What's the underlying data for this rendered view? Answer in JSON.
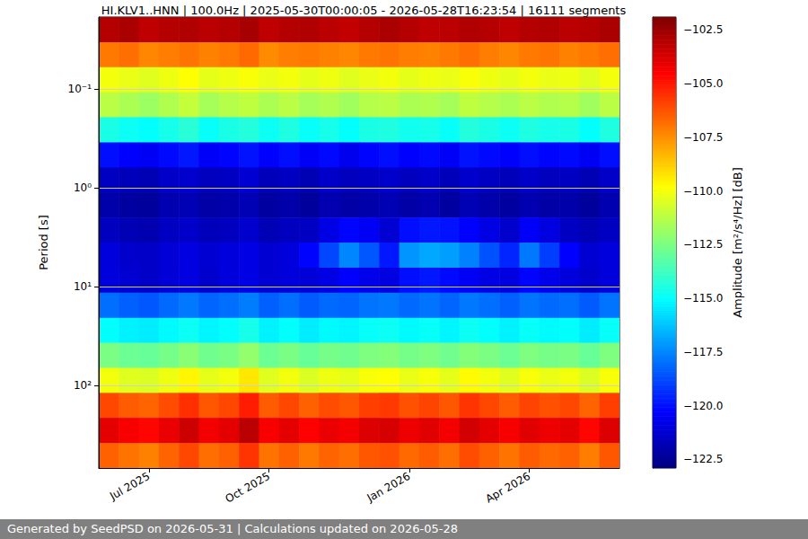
{
  "chart_data": {
    "type": "heatmap",
    "title": "HI.KLV1..HNN | 100.0Hz | 2025-05-30T00:00:05 - 2026-05-28T16:23:54 | 16111 segments",
    "ylabel": "Period [s]",
    "log": "y",
    "grid": true,
    "x": [
      null,
      null,
      "Jul 2025",
      null,
      null,
      null,
      null,
      null,
      "Oct 2025",
      null,
      null,
      null,
      null,
      null,
      null,
      "Jan 2026",
      null,
      null,
      null,
      null,
      null,
      "Apr 2026",
      null,
      null,
      null,
      null
    ],
    "ylim": [
      0.0187,
      686
    ],
    "yticks": [
      {
        "value": 0.1,
        "label": "10⁻¹"
      },
      {
        "value": 1,
        "label": "10⁰"
      },
      {
        "value": 10,
        "label": "10¹"
      },
      {
        "value": 100,
        "label": "10²"
      }
    ],
    "period_edges": [
      0.0187,
      0.0336,
      0.0601,
      0.108,
      0.193,
      0.347,
      0.622,
      1.11,
      2.0,
      3.58,
      6.43,
      11.5,
      20.7,
      37,
      66.4,
      119,
      213,
      383,
      686
    ],
    "cells": [
      [
        -103,
        -102.8,
        -103.2,
        -103,
        -102.9,
        -103.1,
        -103,
        -102.7,
        -103.2,
        -103,
        -102.9,
        -103.1,
        -103.3,
        -103,
        -102.8,
        -103,
        -103.2,
        -103.1,
        -102.9,
        -103,
        -103.2,
        -103,
        -102.9,
        -103.1,
        -103,
        -102.8
      ],
      [
        -107,
        -106.8,
        -107.3,
        -107.1,
        -106.9,
        -107.2,
        -107,
        -106.7,
        -107.4,
        -107.1,
        -107,
        -107.2,
        -107.3,
        -107,
        -106.9,
        -107.1,
        -107.2,
        -107,
        -106.8,
        -107.1,
        -107.3,
        -107,
        -106.9,
        -107.2,
        -107,
        -106.8
      ],
      [
        -110,
        -110.2,
        -110.4,
        -110.1,
        -109.8,
        -110.3,
        -110.1,
        -109.9,
        -110.2,
        -110,
        -110.3,
        -110.1,
        -110.4,
        -110.2,
        -110,
        -110.3,
        -110.1,
        -110.2,
        -109.9,
        -110.1,
        -110.3,
        -110,
        -110.2,
        -110.1,
        -110.4,
        -110
      ],
      [
        -111.2,
        -111.5,
        -111.8,
        -111.4,
        -111,
        -111.6,
        -111.3,
        -111.1,
        -111.5,
        -111.2,
        -111.6,
        -111.4,
        -111.7,
        -111.3,
        -111.2,
        -111.5,
        -111.4,
        -111.6,
        -111.1,
        -111.3,
        -111.5,
        -111.2,
        -111.4,
        -111.3,
        -111.7,
        -111.2
      ],
      [
        -114.5,
        -114.8,
        -115,
        -114.6,
        -114.2,
        -114.9,
        -114.5,
        -114.3,
        -114.8,
        -114.4,
        -114.9,
        -114.6,
        -115,
        -114.5,
        -114.4,
        -114.7,
        -114.6,
        -114.9,
        -114.3,
        -114.5,
        -114.8,
        -114.4,
        -114.6,
        -114.5,
        -115,
        -114.4
      ],
      [
        -120,
        -120.3,
        -120.5,
        -120.1,
        -119.8,
        -120.4,
        -120.2,
        -119.9,
        -120.3,
        -120,
        -120.4,
        -120.1,
        -120.6,
        -120.2,
        -120,
        -120.3,
        -120.1,
        -120.4,
        -119.9,
        -120.1,
        -120.3,
        -120,
        -120.2,
        -120.1,
        -120.5,
        -120
      ],
      [
        -121.5,
        -121.7,
        -121.8,
        -121.4,
        -121.3,
        -121.6,
        -121.5,
        -121.2,
        -121.7,
        -121.5,
        -121.8,
        -121.4,
        -121.6,
        -121.5,
        -121.3,
        -121.6,
        -121.4,
        -121.7,
        -121.3,
        -121.5,
        -121.7,
        -121.4,
        -121.6,
        -121.5,
        -121.8,
        -121.4
      ],
      [
        -122,
        -122.2,
        -122.3,
        -121.9,
        -121.8,
        -122.1,
        -122,
        -121.8,
        -122.2,
        -122,
        -122.3,
        -121.9,
        -122.1,
        -122,
        -121.8,
        -122.1,
        -121.9,
        -122.2,
        -121.8,
        -122,
        -122.2,
        -121.9,
        -122.1,
        -122,
        -122.3,
        -121.9
      ],
      [
        -121.6,
        -121.8,
        -121.9,
        -121.5,
        -121.4,
        -121.7,
        -121.6,
        -121.3,
        -121.8,
        -121.6,
        -121.5,
        -120.8,
        -120.2,
        -120.5,
        -121.2,
        -120,
        -119.8,
        -119.9,
        -120.3,
        -120.8,
        -121.3,
        -120.4,
        -120.9,
        -121.5,
        -121.8,
        -121.5
      ],
      [
        -121,
        -121.3,
        -121.4,
        -121.1,
        -120.9,
        -121.2,
        -121,
        -120.8,
        -121.2,
        -121,
        -120.2,
        -118.8,
        -117.5,
        -118.5,
        -119.8,
        -117.2,
        -116.8,
        -117,
        -117.6,
        -118.6,
        -119.5,
        -117.8,
        -119,
        -120.3,
        -121.2,
        -121
      ],
      [
        -121,
        -121.2,
        -121.4,
        -121.1,
        -120.9,
        -121.3,
        -121,
        -120.8,
        -121.2,
        -121,
        -121.1,
        -120.8,
        -120.3,
        -120.7,
        -120.9,
        -120,
        -119.8,
        -120.1,
        -120.5,
        -120.8,
        -120.9,
        -120.2,
        -120.7,
        -121,
        -121.3,
        -121
      ],
      [
        -118,
        -118.3,
        -118.5,
        -118.1,
        -117.8,
        -118.2,
        -118,
        -117.7,
        -118.3,
        -118,
        -118.4,
        -118.1,
        -118.2,
        -117.9,
        -117.8,
        -118.1,
        -117.9,
        -118.2,
        -117.8,
        -118,
        -118.3,
        -117.9,
        -118.1,
        -118,
        -118.4,
        -117.9
      ],
      [
        -115,
        -115.3,
        -115.4,
        -115.1,
        -114.8,
        -115.2,
        -115,
        -114.6,
        -115.3,
        -115,
        -115.4,
        -115.1,
        -115.2,
        -114.9,
        -114.8,
        -115.1,
        -114.9,
        -115.2,
        -114.8,
        -115,
        -115.3,
        -114.9,
        -115.1,
        -115,
        -115.4,
        -114.9
      ],
      [
        -112.5,
        -112.8,
        -112.9,
        -112.6,
        -112.2,
        -112.7,
        -112.5,
        -112,
        -112.8,
        -112.5,
        -112.9,
        -112.6,
        -112.7,
        -112.4,
        -112.3,
        -112.6,
        -112.4,
        -112.7,
        -112.3,
        -112.5,
        -112.8,
        -112.4,
        -112.6,
        -112.5,
        -112.9,
        -112.4
      ],
      [
        -110,
        -110.4,
        -110.5,
        -110.1,
        -109.6,
        -110.3,
        -110,
        -109.3,
        -110.4,
        -110,
        -110.5,
        -110.1,
        -110.3,
        -109.9,
        -109.8,
        -110.2,
        -109.9,
        -110.3,
        -109.7,
        -110,
        -110.4,
        -109.9,
        -110.2,
        -110,
        -110.5,
        -109.9
      ],
      [
        -106,
        -106.4,
        -106.6,
        -106.1,
        -105.5,
        -106.3,
        -106,
        -105.1,
        -106.4,
        -106,
        -106.5,
        -106.1,
        -106.3,
        -105.8,
        -105.7,
        -106.2,
        -105.9,
        -106.3,
        -105.6,
        -106,
        -106.4,
        -105.9,
        -106.2,
        -106,
        -106.6,
        -105.8
      ],
      [
        -104,
        -104.4,
        -104.6,
        -104.1,
        -103.5,
        -104.3,
        -104,
        -103.1,
        -104.4,
        -104,
        -104.5,
        -104.1,
        -104.3,
        -103.8,
        -103.7,
        -104.2,
        -103.9,
        -104.3,
        -103.6,
        -104,
        -104.4,
        -103.9,
        -104.2,
        -104,
        -104.6,
        -103.8
      ],
      [
        -106.5,
        -106.9,
        -107.2,
        -106.6,
        -106,
        -106.8,
        -106.5,
        -105.6,
        -106.9,
        -106.5,
        -107,
        -106.6,
        -106.8,
        -106.3,
        -106.2,
        -106.7,
        -106.4,
        -106.8,
        -106.1,
        -106.5,
        -106.9,
        -106.4,
        -106.7,
        -106.5,
        -107.1,
        -106.3
      ]
    ],
    "colorbar": {
      "label": "Amplitude [m²/s⁴/Hz] [dB]",
      "range": [
        -122.9,
        -101.9
      ],
      "ticks": [
        {
          "value": -102.5,
          "label": "−102.5"
        },
        {
          "value": -105,
          "label": "−105.0"
        },
        {
          "value": -107.5,
          "label": "−107.5"
        },
        {
          "value": -110,
          "label": "−110.0"
        },
        {
          "value": -112.5,
          "label": "−112.5"
        },
        {
          "value": -115,
          "label": "−115.0"
        },
        {
          "value": -117.5,
          "label": "−117.5"
        },
        {
          "value": -120,
          "label": "−120.0"
        },
        {
          "value": -122.5,
          "label": "−122.5"
        }
      ]
    },
    "footer": "Generated by SeedPSD on 2026-05-31 | Calculations updated on 2026-05-28"
  }
}
